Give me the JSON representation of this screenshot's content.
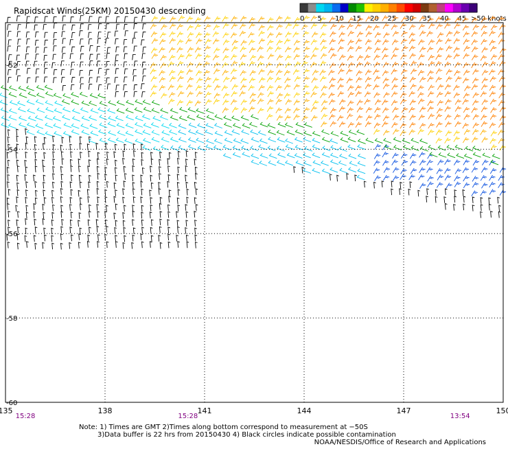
{
  "title": "Rapidscat Winds(25KM) 20150430 descending",
  "legend": {
    "labels": [
      "0",
      "5",
      "10",
      "15",
      "20",
      "25",
      "30",
      "35",
      "40",
      "45",
      ">50 knots"
    ],
    "colors": [
      "#3a3a3a",
      "#8c8c8c",
      "#00d8f0",
      "#00b4f0",
      "#0a6cf0",
      "#0000c8",
      "#008a00",
      "#22c000",
      "#fff000",
      "#ffd000",
      "#ffb000",
      "#ff8000",
      "#ff4a00",
      "#ff0000",
      "#d00000",
      "#7a3a10",
      "#b06030",
      "#c04080",
      "#ff00ff",
      "#b000d0",
      "#6a00b0",
      "#3c0078"
    ]
  },
  "map": {
    "lon_ticks": [
      "135",
      "138",
      "141",
      "144",
      "147",
      "150"
    ],
    "lat_ticks": [
      "-52",
      "-54",
      "-56",
      "-58",
      "-60"
    ],
    "lon_range": [
      135,
      150
    ],
    "lat_range": [
      -60,
      -51
    ],
    "times": [
      {
        "lon": 135.6,
        "text": "15:28"
      },
      {
        "lon": 140.5,
        "text": "15:28"
      },
      {
        "lon": 148.7,
        "text": "13:54"
      }
    ]
  },
  "notes": {
    "line1": "Note: 1) Times are GMT 2)Times along bottom correspond to measurement at −50S",
    "line2": "3)Data buffer is 22 hrs from 20150430 4) Black circles indicate possible contamination",
    "credit": "NOAA/NESDIS/Office of Research and Applications"
  }
}
